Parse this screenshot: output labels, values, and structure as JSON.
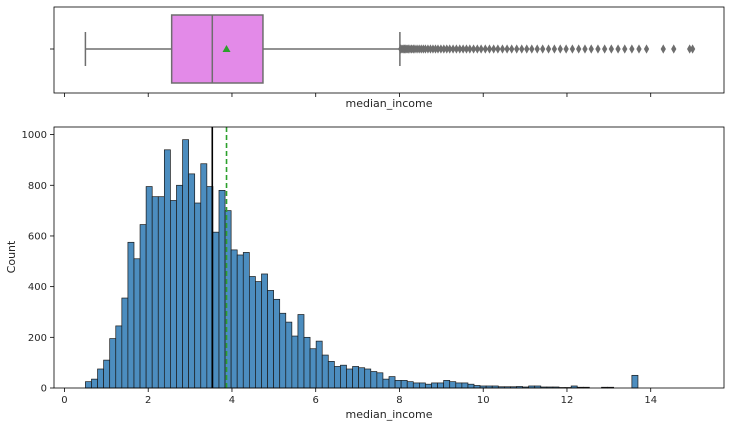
{
  "chart_data": [
    {
      "type": "boxplot",
      "xlabel": "median_income",
      "y_tick_labels": [
        ""
      ],
      "xlim": [
        -0.25,
        15.75
      ],
      "stats": {
        "whisker_low": 0.5,
        "q1": 2.56,
        "median": 3.53,
        "q3": 4.74,
        "whisker_high": 8.01,
        "mean": 3.87
      },
      "outliers": [
        8.03,
        8.06,
        8.09,
        8.12,
        8.15,
        8.18,
        8.21,
        8.25,
        8.29,
        8.33,
        8.37,
        8.42,
        8.47,
        8.52,
        8.57,
        8.62,
        8.68,
        8.74,
        8.8,
        8.86,
        8.92,
        8.99,
        9.06,
        9.13,
        9.2,
        9.28,
        9.36,
        9.44,
        9.52,
        9.6,
        9.68,
        9.77,
        9.86,
        9.95,
        10.05,
        10.15,
        10.25,
        10.35,
        10.46,
        10.57,
        10.68,
        10.8,
        10.92,
        11.04,
        11.16,
        11.29,
        11.42,
        11.56,
        11.7,
        11.84,
        11.98,
        12.13,
        12.28,
        12.43,
        12.58,
        12.74,
        12.9,
        13.06,
        13.22,
        13.38,
        13.55,
        13.72,
        13.9,
        14.3,
        14.55,
        14.93,
        15.0
      ],
      "colors": {
        "box_fill": "#e38ae8",
        "line": "#6e6e6e",
        "mean_marker": "#2ca02c"
      }
    },
    {
      "type": "bar",
      "xlabel": "median_income",
      "ylabel": "Count",
      "xlim": [
        -0.25,
        15.75
      ],
      "ylim": [
        0,
        1030
      ],
      "x_ticks": [
        0,
        2,
        4,
        6,
        8,
        10,
        12,
        14
      ],
      "y_ticks": [
        0,
        200,
        400,
        600,
        800,
        1000
      ],
      "bin_start": 0.5,
      "bin_width": 0.145,
      "values": [
        25,
        35,
        75,
        110,
        195,
        245,
        355,
        575,
        510,
        645,
        795,
        755,
        755,
        940,
        740,
        800,
        980,
        845,
        730,
        885,
        795,
        615,
        780,
        700,
        545,
        525,
        535,
        440,
        420,
        450,
        385,
        350,
        295,
        260,
        205,
        290,
        200,
        155,
        185,
        130,
        105,
        85,
        90,
        75,
        85,
        80,
        75,
        65,
        60,
        35,
        45,
        30,
        30,
        25,
        20,
        20,
        15,
        20,
        20,
        30,
        25,
        20,
        20,
        15,
        10,
        8,
        8,
        8,
        5,
        5,
        5,
        6,
        4,
        8,
        8,
        4,
        4,
        4,
        2,
        2,
        8,
        3,
        3,
        0,
        0,
        3,
        3,
        0,
        0,
        0,
        50
      ],
      "lines": {
        "median": 3.53,
        "mean": 3.87
      },
      "colors": {
        "bar_fill": "#4c8dbf",
        "bar_edge": "#1a1a1a",
        "median_line": "#000000",
        "mean_line": "#2ca02c"
      }
    }
  ]
}
